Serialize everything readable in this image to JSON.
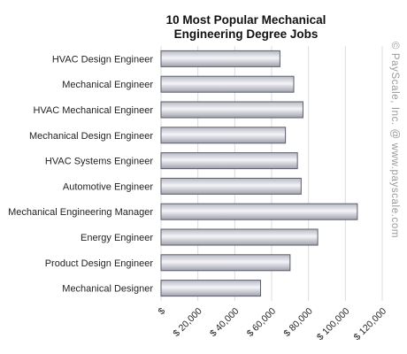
{
  "chart_data": {
    "type": "bar",
    "orientation": "horizontal",
    "title_lines": [
      "10 Most Popular Mechanical",
      "Engineering Degree Jobs"
    ],
    "categories": [
      "HVAC Design Engineer",
      "Mechanical Engineer",
      "HVAC Mechanical Engineer",
      "Mechanical Design Engineer",
      "HVAC Systems Engineer",
      "Automotive Engineer",
      "Mechanical Engineering Manager",
      "Energy Engineer",
      "Product Design Engineer",
      "Mechanical Designer"
    ],
    "values": [
      64500,
      72000,
      77000,
      67500,
      74000,
      76000,
      106500,
      85000,
      70000,
      54000
    ],
    "xlim": [
      0,
      120000
    ],
    "x_ticks": [
      0,
      20000,
      40000,
      60000,
      80000,
      100000,
      120000
    ],
    "x_tick_labels": [
      "$",
      "$ 20,000",
      "$ 40,000",
      "$ 60,000",
      "$ 80,000",
      "$ 100,000",
      "$ 120,000"
    ],
    "grid": true,
    "watermark": "© PayScale, Inc. @ www.payscale.com",
    "colors": {
      "bar_fill_light": "#f4f4f8",
      "bar_fill_dark": "#9fa1ad",
      "bar_stroke": "#5b5d6a",
      "grid_line": "#dcdcdc",
      "plot_bg": "#ffffff"
    }
  }
}
